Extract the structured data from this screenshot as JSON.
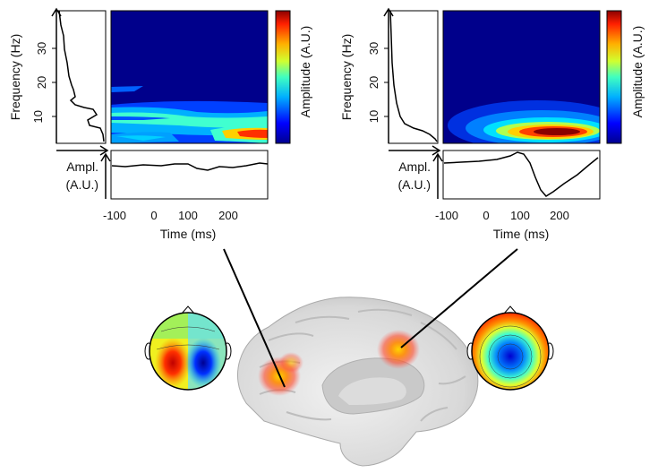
{
  "panels": [
    {
      "id": "left",
      "freq_axis": {
        "label": "Frequency (Hz)",
        "ticks": [
          "10",
          "20",
          "30"
        ]
      },
      "amp_axis": {
        "label_line1": "Ampl.",
        "label_line2": "(A.U.)"
      },
      "colorbar": {
        "label": "Amplitude (A.U.)"
      },
      "time_axis": {
        "label": "Time (ms)",
        "ticks": [
          "-100",
          "0",
          "100",
          "200"
        ]
      },
      "topomap": "lateral dipolar pattern, red left / blue right"
    },
    {
      "id": "right",
      "freq_axis": {
        "label": "Frequency (Hz)",
        "ticks": [
          "10",
          "20",
          "30"
        ]
      },
      "amp_axis": {
        "label_line1": "Ampl.",
        "label_line2": "(A.U.)"
      },
      "colorbar": {
        "label": "Amplitude (A.U.)"
      },
      "time_axis": {
        "label": "Time (ms)",
        "ticks": [
          "-100",
          "0",
          "100",
          "200"
        ]
      },
      "topomap": "central blue negativity surrounded by red"
    }
  ],
  "colors": {
    "tf_background": "#00008b",
    "colormap": [
      "#00008f",
      "#0000ff",
      "#0080ff",
      "#00ffff",
      "#80ff80",
      "#ffff00",
      "#ff8000",
      "#ff0000",
      "#800000"
    ]
  },
  "brain": {
    "view": "medial cortical surface",
    "activations": 2
  }
}
